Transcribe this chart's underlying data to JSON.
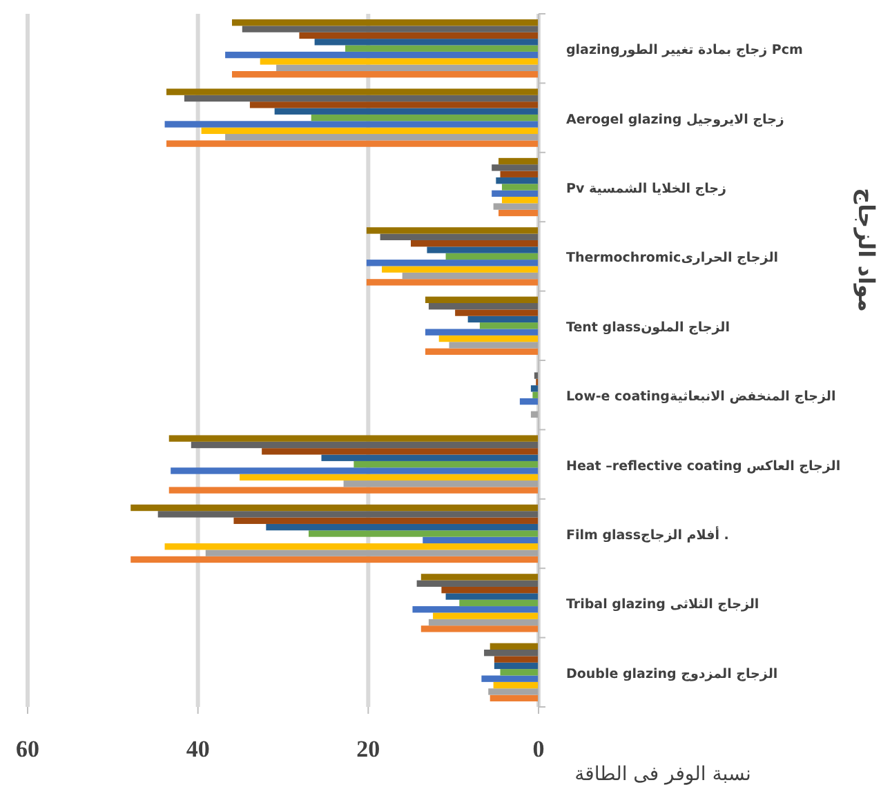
{
  "chart_data": {
    "type": "bar",
    "orientation": "horizontal",
    "categories": [
      "glazingزجاج بمادة تغيير الطور Pcm",
      "Aerogel glazing زجاج الايروجيل",
      "Pv زجاج الخلايا الشمسية",
      "Thermochromicالزجاج الحرارى",
      "Tent glassالزجاج الملون",
      "Low-e coatingالزجاج المنخفض الانبعاثية",
      "Heat –reflective coating الزجاج العاكس",
      "Film glassأفلام الزجاج .",
      "Tribal glazing الزجاج الثلاثى",
      "Double glazing الزجاج المزدوج"
    ],
    "series": [
      {
        "color": "#ed7d31",
        "values": [
          36.0,
          43.7,
          4.7,
          20.2,
          13.3,
          0,
          43.4,
          47.9,
          13.8,
          5.7
        ]
      },
      {
        "color": "#a5a5a5",
        "values": [
          30.8,
          36.8,
          5.3,
          16.0,
          10.5,
          0.9,
          22.9,
          39.1,
          12.9,
          5.9
        ]
      },
      {
        "color": "#ffc000",
        "values": [
          32.7,
          39.6,
          4.3,
          18.4,
          11.7,
          0,
          35.1,
          43.9,
          12.4,
          5.3
        ]
      },
      {
        "color": "#4472c4",
        "values": [
          36.8,
          43.9,
          5.5,
          20.2,
          13.3,
          2.2,
          43.2,
          13.6,
          14.8,
          6.7
        ]
      },
      {
        "color": "#70ad47",
        "values": [
          22.7,
          26.7,
          4.3,
          10.9,
          6.9,
          0.7,
          21.7,
          27.0,
          9.3,
          4.5
        ]
      },
      {
        "color": "#255e91",
        "values": [
          26.3,
          31.0,
          5.0,
          13.1,
          8.3,
          0.9,
          25.5,
          32.0,
          10.9,
          5.2
        ]
      },
      {
        "color": "#9e480e",
        "values": [
          28.1,
          33.9,
          4.5,
          15.0,
          9.8,
          0.3,
          32.5,
          35.8,
          11.4,
          5.2
        ]
      },
      {
        "color": "#636363",
        "values": [
          34.8,
          41.6,
          5.5,
          18.6,
          12.9,
          0.5,
          40.8,
          44.7,
          14.3,
          6.4
        ]
      },
      {
        "color": "#997300",
        "values": [
          36.0,
          43.7,
          4.7,
          20.2,
          13.3,
          0,
          43.4,
          47.9,
          13.8,
          5.7
        ]
      }
    ],
    "xlabel": "نسبة الوفر فى الطاقة",
    "ylabel": "مواد الزجاج",
    "xlim": [
      60,
      0
    ],
    "xticks": [
      0,
      20,
      40,
      60
    ],
    "grid": "x"
  }
}
